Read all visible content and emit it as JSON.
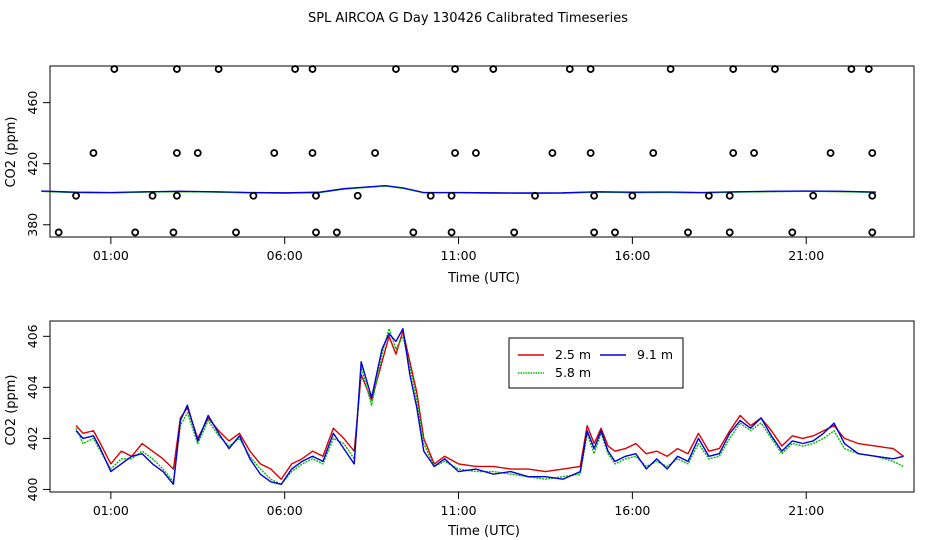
{
  "title": "SPL AIRCOA G  Day 130426  Calibrated Timeseries",
  "colors": {
    "red": "#dd0000",
    "green": "#00bb00",
    "blue": "#0000dd",
    "axis": "#000000"
  },
  "chart_data": [
    {
      "type": "scatter",
      "xlabel": "Time (UTC)",
      "ylabel": "CO2 (ppm)",
      "xlim": [
        -0.75,
        24.1
      ],
      "ylim": [
        372,
        484
      ],
      "xticks": [
        1,
        6,
        11,
        16,
        21
      ],
      "xtick_labels": [
        "01:00",
        "06:00",
        "11:00",
        "16:00",
        "21:00"
      ],
      "yticks": [
        380,
        420,
        460
      ],
      "ytick_labels": [
        "380",
        "420",
        "460"
      ],
      "points": [
        {
          "x": -0.5,
          "y": 375
        },
        {
          "x": 0,
          "y": 399
        },
        {
          "x": 0.5,
          "y": 427
        },
        {
          "x": 1.1,
          "y": 482
        },
        {
          "x": 1.7,
          "y": 375
        },
        {
          "x": 2.2,
          "y": 399
        },
        {
          "x": 2.8,
          "y": 375
        },
        {
          "x": 2.9,
          "y": 399
        },
        {
          "x": 2.9,
          "y": 427
        },
        {
          "x": 2.9,
          "y": 482
        },
        {
          "x": 3.5,
          "y": 427
        },
        {
          "x": 4.1,
          "y": 482
        },
        {
          "x": 4.6,
          "y": 375
        },
        {
          "x": 5.1,
          "y": 399
        },
        {
          "x": 5.7,
          "y": 427
        },
        {
          "x": 6.3,
          "y": 482
        },
        {
          "x": 6.8,
          "y": 482
        },
        {
          "x": 6.8,
          "y": 427
        },
        {
          "x": 6.9,
          "y": 399
        },
        {
          "x": 6.9,
          "y": 375
        },
        {
          "x": 7.5,
          "y": 375
        },
        {
          "x": 8.1,
          "y": 399
        },
        {
          "x": 8.6,
          "y": 427
        },
        {
          "x": 9.2,
          "y": 482
        },
        {
          "x": 9.7,
          "y": 375
        },
        {
          "x": 10.2,
          "y": 399
        },
        {
          "x": 10.8,
          "y": 375
        },
        {
          "x": 10.8,
          "y": 399
        },
        {
          "x": 10.9,
          "y": 427
        },
        {
          "x": 10.9,
          "y": 482
        },
        {
          "x": 11.5,
          "y": 427
        },
        {
          "x": 12.0,
          "y": 482
        },
        {
          "x": 12.6,
          "y": 375
        },
        {
          "x": 13.2,
          "y": 399
        },
        {
          "x": 13.7,
          "y": 427
        },
        {
          "x": 14.2,
          "y": 482
        },
        {
          "x": 14.8,
          "y": 482
        },
        {
          "x": 14.8,
          "y": 427
        },
        {
          "x": 14.9,
          "y": 399
        },
        {
          "x": 14.9,
          "y": 375
        },
        {
          "x": 15.5,
          "y": 375
        },
        {
          "x": 16.0,
          "y": 399
        },
        {
          "x": 16.6,
          "y": 427
        },
        {
          "x": 17.1,
          "y": 482
        },
        {
          "x": 17.6,
          "y": 375
        },
        {
          "x": 18.2,
          "y": 399
        },
        {
          "x": 18.8,
          "y": 375
        },
        {
          "x": 18.8,
          "y": 399
        },
        {
          "x": 18.9,
          "y": 427
        },
        {
          "x": 18.9,
          "y": 482
        },
        {
          "x": 19.5,
          "y": 427
        },
        {
          "x": 20.1,
          "y": 482
        },
        {
          "x": 20.6,
          "y": 375
        },
        {
          "x": 21.2,
          "y": 399
        },
        {
          "x": 21.7,
          "y": 427
        },
        {
          "x": 22.3,
          "y": 482
        },
        {
          "x": 22.8,
          "y": 482
        },
        {
          "x": 22.9,
          "y": 427
        },
        {
          "x": 22.9,
          "y": 399
        },
        {
          "x": 22.9,
          "y": 375
        }
      ],
      "baseline": {
        "x": [
          -1,
          0,
          1,
          2,
          3,
          4,
          5,
          6,
          7,
          7.7,
          8.3,
          8.9,
          9.4,
          10,
          11,
          12,
          13,
          14,
          15,
          16,
          17,
          18,
          19,
          20,
          21,
          22,
          23
        ],
        "y": [
          402,
          401.2,
          401.0,
          401.5,
          401.8,
          401.5,
          401.0,
          400.8,
          401.2,
          403.5,
          404.5,
          405.5,
          404,
          401,
          401,
          400.8,
          400.7,
          400.8,
          401.5,
          401.2,
          401.3,
          401.0,
          401.5,
          401.8,
          402,
          401.8,
          401.3
        ]
      }
    },
    {
      "type": "line",
      "xlabel": "Time (UTC)",
      "ylabel": "CO2 (ppm)",
      "xlim": [
        -0.75,
        24.1
      ],
      "ylim": [
        399.9,
        406.6
      ],
      "xticks": [
        1,
        6,
        11,
        16,
        21
      ],
      "xtick_labels": [
        "01:00",
        "06:00",
        "11:00",
        "16:00",
        "21:00"
      ],
      "yticks": [
        400,
        402,
        404,
        406
      ],
      "ytick_labels": [
        "400",
        "402",
        "404",
        "406"
      ],
      "legend": {
        "position": "top-center"
      },
      "series": [
        {
          "name": "2.5 m",
          "color": "red",
          "x": [
            0,
            0.2,
            0.5,
            0.7,
            1,
            1.3,
            1.6,
            1.9,
            2.2,
            2.5,
            2.8,
            3,
            3.2,
            3.5,
            3.8,
            4.1,
            4.4,
            4.7,
            5,
            5.3,
            5.6,
            5.9,
            6.2,
            6.5,
            6.8,
            7.1,
            7.4,
            7.7,
            8,
            8.2,
            8.5,
            8.8,
            9,
            9.2,
            9.4,
            9.6,
            9.8,
            10,
            10.3,
            10.6,
            11,
            11.5,
            12,
            12.5,
            13,
            13.5,
            14,
            14.5,
            14.7,
            14.9,
            15.1,
            15.3,
            15.5,
            15.8,
            16.1,
            16.4,
            16.7,
            17,
            17.3,
            17.6,
            17.9,
            18.2,
            18.5,
            18.8,
            19.1,
            19.4,
            19.7,
            20,
            20.3,
            20.6,
            20.9,
            21.2,
            21.5,
            21.8,
            22.1,
            22.5,
            23,
            23.5,
            23.8
          ],
          "y": [
            402.5,
            402.2,
            402.3,
            401.8,
            401,
            401.5,
            401.3,
            401.8,
            401.5,
            401.2,
            400.8,
            402.8,
            403.2,
            402.0,
            402.8,
            402.3,
            401.9,
            402.2,
            401.5,
            401.0,
            400.8,
            400.4,
            401.0,
            401.2,
            401.5,
            401.3,
            402.4,
            402.0,
            401.5,
            404.5,
            403.5,
            405.0,
            406.0,
            405.3,
            406.2,
            405.0,
            403.8,
            402.0,
            401.0,
            401.3,
            401.0,
            400.9,
            400.9,
            400.8,
            400.8,
            400.7,
            400.8,
            400.9,
            402.5,
            401.8,
            402.4,
            401.7,
            401.5,
            401.6,
            401.8,
            401.4,
            401.5,
            401.3,
            401.6,
            401.4,
            402.2,
            401.5,
            401.6,
            402.3,
            402.9,
            402.5,
            402.8,
            402.3,
            401.7,
            402.1,
            402.0,
            402.1,
            402.3,
            402.5,
            402.0,
            401.8,
            401.7,
            401.6,
            401.3
          ]
        },
        {
          "name": "5.8 m",
          "color": "green",
          "x": [
            0,
            0.2,
            0.5,
            0.7,
            1,
            1.3,
            1.6,
            1.9,
            2.2,
            2.5,
            2.8,
            3,
            3.2,
            3.5,
            3.8,
            4.1,
            4.4,
            4.7,
            5,
            5.3,
            5.6,
            5.9,
            6.2,
            6.5,
            6.8,
            7.1,
            7.4,
            7.7,
            8,
            8.2,
            8.5,
            8.8,
            9,
            9.2,
            9.4,
            9.6,
            9.8,
            10,
            10.3,
            10.6,
            11,
            11.5,
            12,
            12.5,
            13,
            13.5,
            14,
            14.5,
            14.7,
            14.9,
            15.1,
            15.3,
            15.5,
            15.8,
            16.1,
            16.4,
            16.7,
            17,
            17.3,
            17.6,
            17.9,
            18.2,
            18.5,
            18.8,
            19.1,
            19.4,
            19.7,
            20,
            20.3,
            20.6,
            20.9,
            21.2,
            21.5,
            21.8,
            22.1,
            22.5,
            23,
            23.5,
            23.8
          ],
          "y": [
            402.4,
            401.8,
            402.0,
            401.5,
            400.8,
            401.2,
            401.2,
            401.5,
            401.2,
            400.8,
            400.3,
            402.5,
            403.0,
            401.8,
            402.7,
            402.1,
            401.7,
            402.0,
            401.3,
            400.8,
            400.4,
            400.2,
            400.7,
            401.0,
            401.2,
            401.0,
            402.0,
            401.8,
            401.2,
            404.8,
            403.3,
            405.3,
            406.3,
            405.5,
            406.0,
            404.8,
            403.5,
            401.8,
            400.9,
            401.1,
            400.8,
            400.7,
            400.7,
            400.6,
            400.5,
            400.4,
            400.5,
            400.6,
            402.2,
            401.4,
            402.2,
            401.4,
            401.0,
            401.2,
            401.3,
            400.9,
            401.1,
            400.9,
            401.2,
            401.0,
            401.8,
            401.2,
            401.3,
            402.0,
            402.6,
            402.3,
            402.6,
            402.0,
            401.4,
            401.8,
            401.7,
            401.8,
            402.0,
            402.3,
            401.6,
            401.4,
            401.3,
            401.1,
            400.9
          ]
        },
        {
          "name": "9.1 m",
          "color": "blue",
          "x": [
            0,
            0.2,
            0.5,
            0.7,
            1,
            1.3,
            1.6,
            1.9,
            2.2,
            2.5,
            2.8,
            3,
            3.2,
            3.5,
            3.8,
            4.1,
            4.4,
            4.7,
            5,
            5.3,
            5.6,
            5.9,
            6.2,
            6.5,
            6.8,
            7.1,
            7.4,
            7.7,
            8,
            8.2,
            8.5,
            8.8,
            9,
            9.2,
            9.4,
            9.6,
            9.8,
            10,
            10.3,
            10.6,
            11,
            11.5,
            12,
            12.5,
            13,
            13.5,
            14,
            14.5,
            14.7,
            14.9,
            15.1,
            15.3,
            15.5,
            15.8,
            16.1,
            16.4,
            16.7,
            17,
            17.3,
            17.6,
            17.9,
            18.2,
            18.5,
            18.8,
            19.1,
            19.4,
            19.7,
            20,
            20.3,
            20.6,
            20.9,
            21.2,
            21.5,
            21.8,
            22.1,
            22.5,
            23,
            23.5,
            23.8
          ],
          "y": [
            402.3,
            402.0,
            402.1,
            401.6,
            400.7,
            401.0,
            401.3,
            401.4,
            401.0,
            400.7,
            400.2,
            402.7,
            403.3,
            401.9,
            402.9,
            402.2,
            401.6,
            402.1,
            401.2,
            400.6,
            400.3,
            400.2,
            400.8,
            401.1,
            401.3,
            401.1,
            402.2,
            401.6,
            401.0,
            405.0,
            403.6,
            405.5,
            406.1,
            405.8,
            406.3,
            404.5,
            403.2,
            401.5,
            400.9,
            401.2,
            400.7,
            400.8,
            400.6,
            400.7,
            400.5,
            400.5,
            400.4,
            400.7,
            402.3,
            401.6,
            402.3,
            401.5,
            401.1,
            401.3,
            401.4,
            400.8,
            401.2,
            400.8,
            401.3,
            401.1,
            402.0,
            401.3,
            401.4,
            402.2,
            402.7,
            402.4,
            402.8,
            402.1,
            401.5,
            401.9,
            401.8,
            401.9,
            402.2,
            402.6,
            401.8,
            401.4,
            401.3,
            401.2,
            401.3
          ]
        }
      ]
    }
  ]
}
